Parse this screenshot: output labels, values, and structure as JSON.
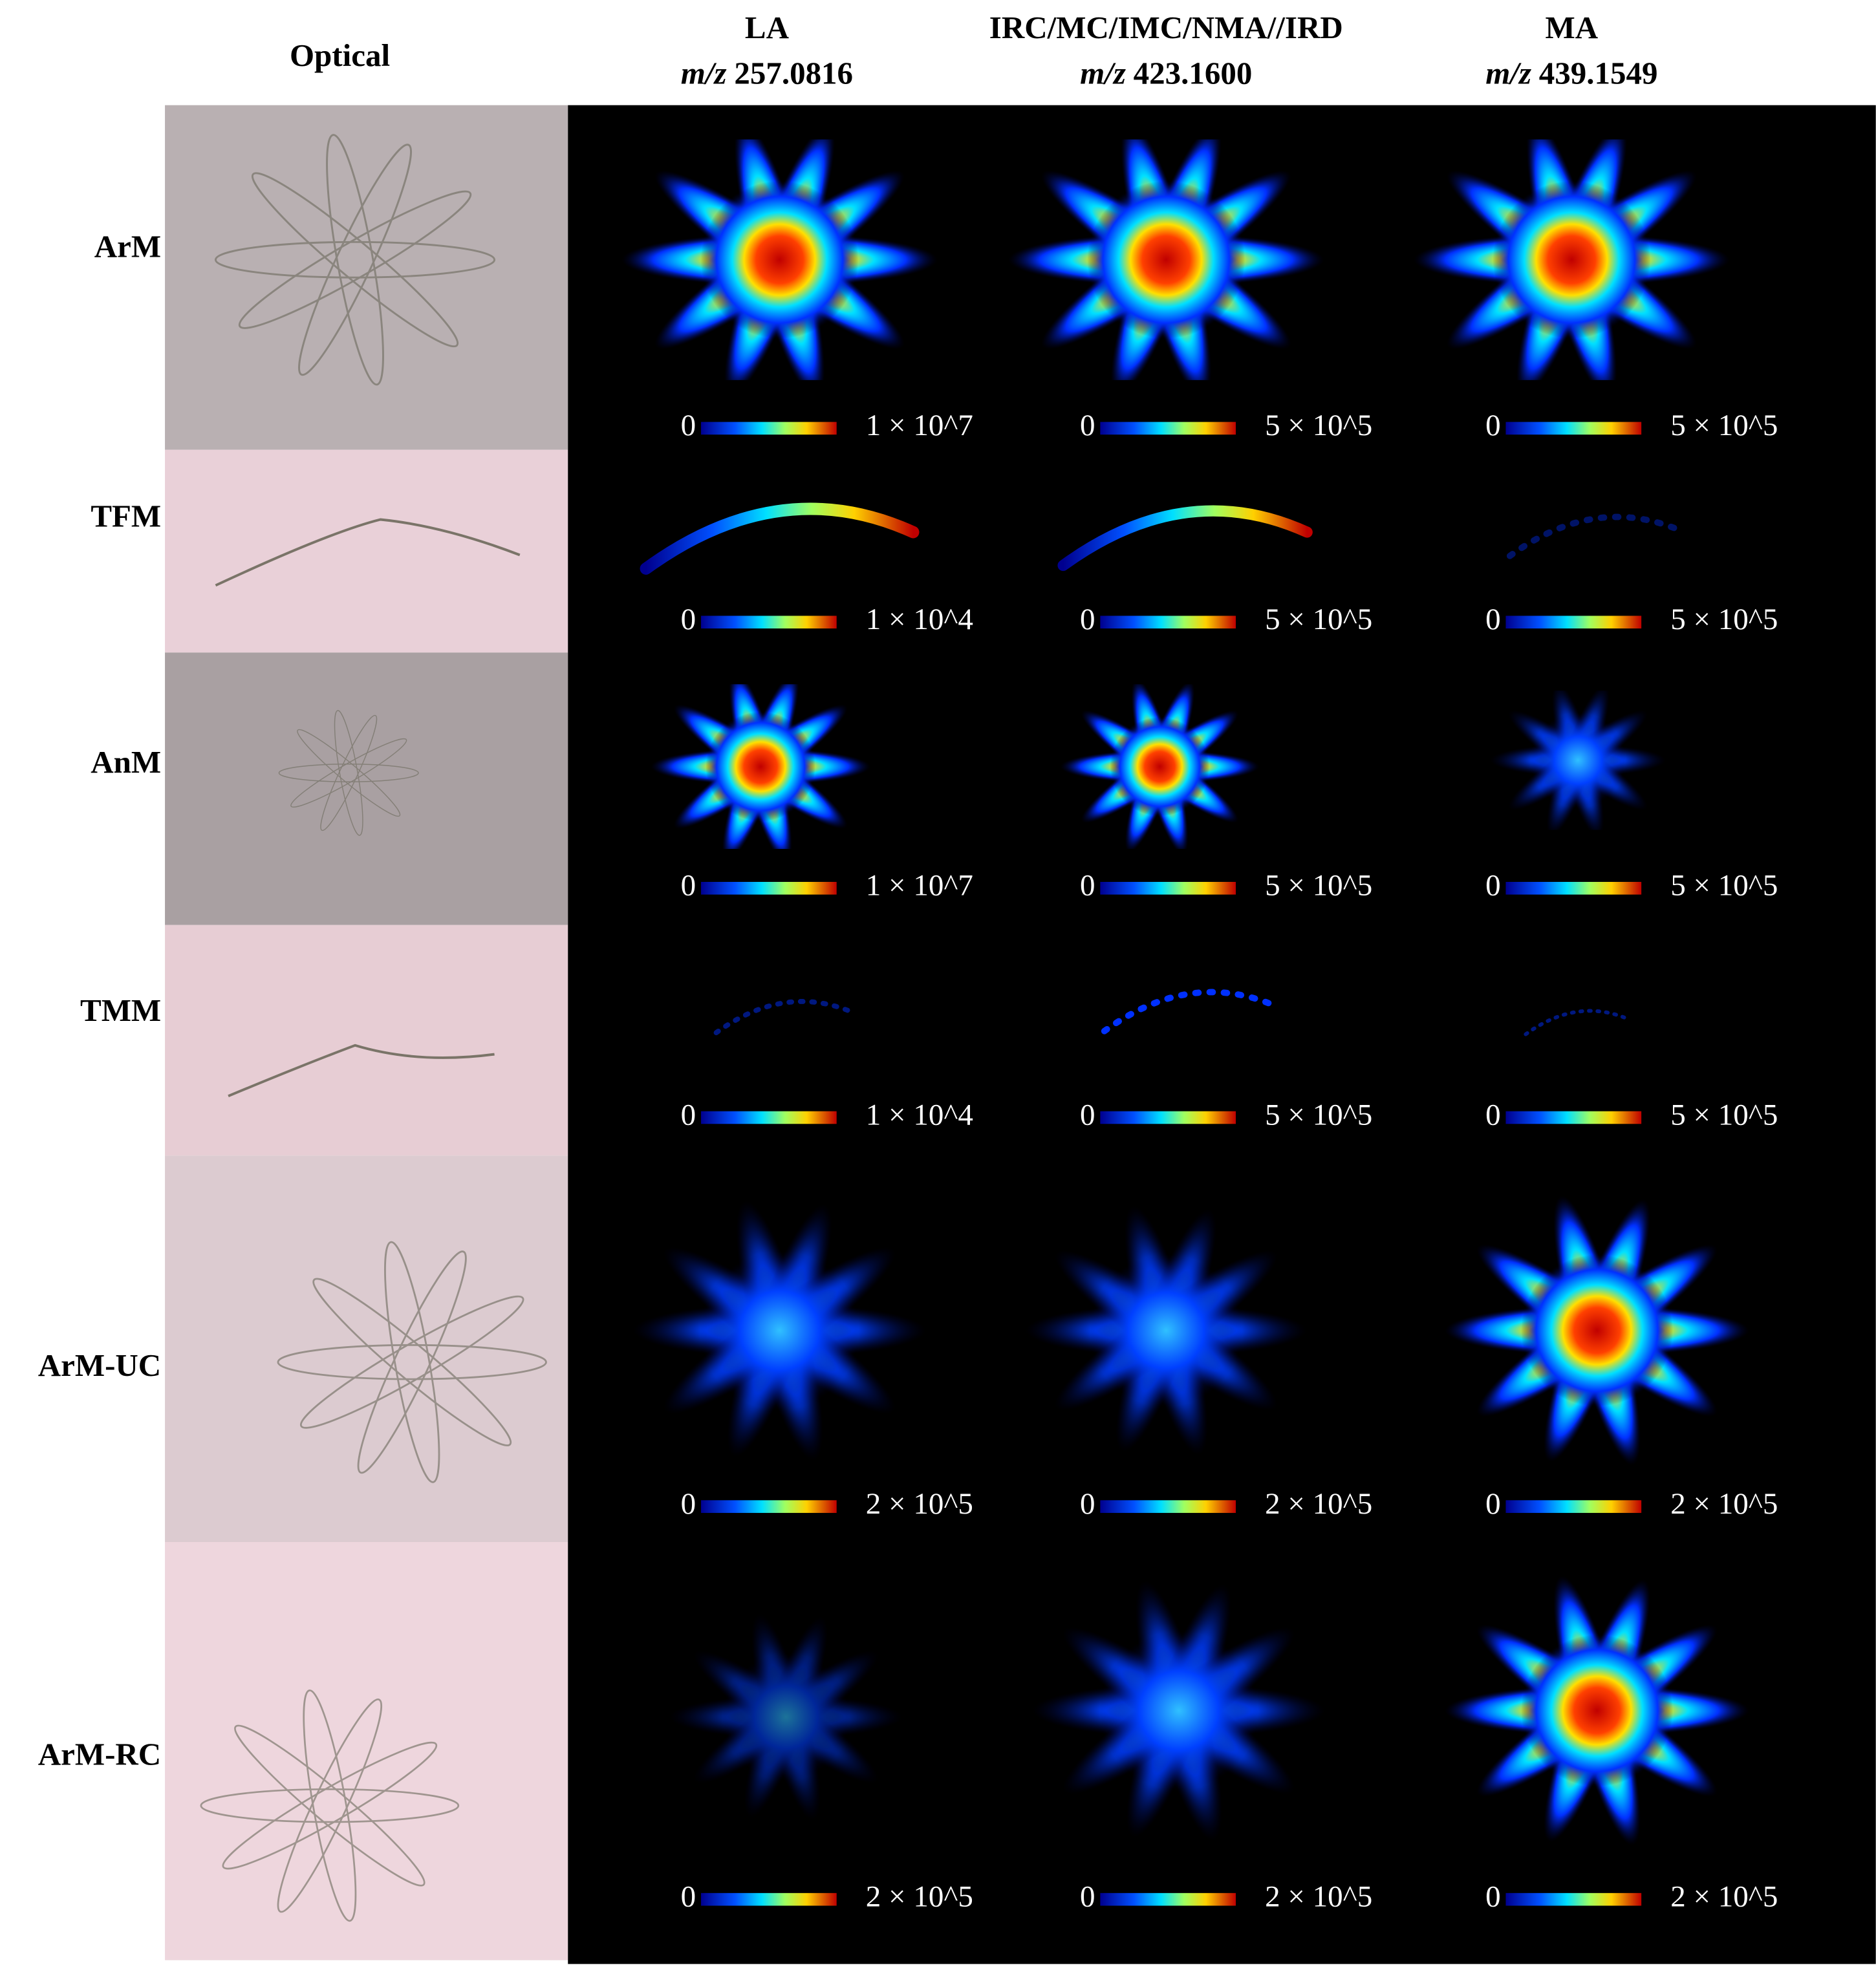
{
  "header": {
    "optical": "Optical",
    "columns": [
      {
        "name": "LA",
        "mz_label": "m/z",
        "mz": "257.0816"
      },
      {
        "name": "IRC/MC/IMC/NMA//IRD",
        "mz_label": "m/z",
        "mz": "423.1600"
      },
      {
        "name": "MA",
        "mz_label": "m/z",
        "mz": "439.1549"
      }
    ]
  },
  "rows": [
    {
      "label": "ArM",
      "scales": [
        {
          "min": "0",
          "max": "1 × 10^7"
        },
        {
          "min": "0",
          "max": "5 × 10^5"
        },
        {
          "min": "0",
          "max": "5 × 10^5"
        }
      ]
    },
    {
      "label": "TFM",
      "scales": [
        {
          "min": "0",
          "max": "1 × 10^4"
        },
        {
          "min": "0",
          "max": "5 × 10^5"
        },
        {
          "min": "0",
          "max": "5 × 10^5"
        }
      ]
    },
    {
      "label": "AnM",
      "scales": [
        {
          "min": "0",
          "max": "1 × 10^7"
        },
        {
          "min": "0",
          "max": "5 × 10^5"
        },
        {
          "min": "0",
          "max": "5 × 10^5"
        }
      ]
    },
    {
      "label": "TMM",
      "scales": [
        {
          "min": "0",
          "max": "1 × 10^4"
        },
        {
          "min": "0",
          "max": "5 × 10^5"
        },
        {
          "min": "0",
          "max": "5 × 10^5"
        }
      ]
    },
    {
      "label": "ArM-UC",
      "scales": [
        {
          "min": "0",
          "max": "2 × 10^5"
        },
        {
          "min": "0",
          "max": "2 × 10^5"
        },
        {
          "min": "0",
          "max": "2 × 10^5"
        }
      ]
    },
    {
      "label": "ArM-RC",
      "scales": [
        {
          "min": "0",
          "max": "2 × 10^5"
        },
        {
          "min": "0",
          "max": "2 × 10^5"
        },
        {
          "min": "0",
          "max": "2 × 10^5"
        }
      ]
    }
  ]
}
